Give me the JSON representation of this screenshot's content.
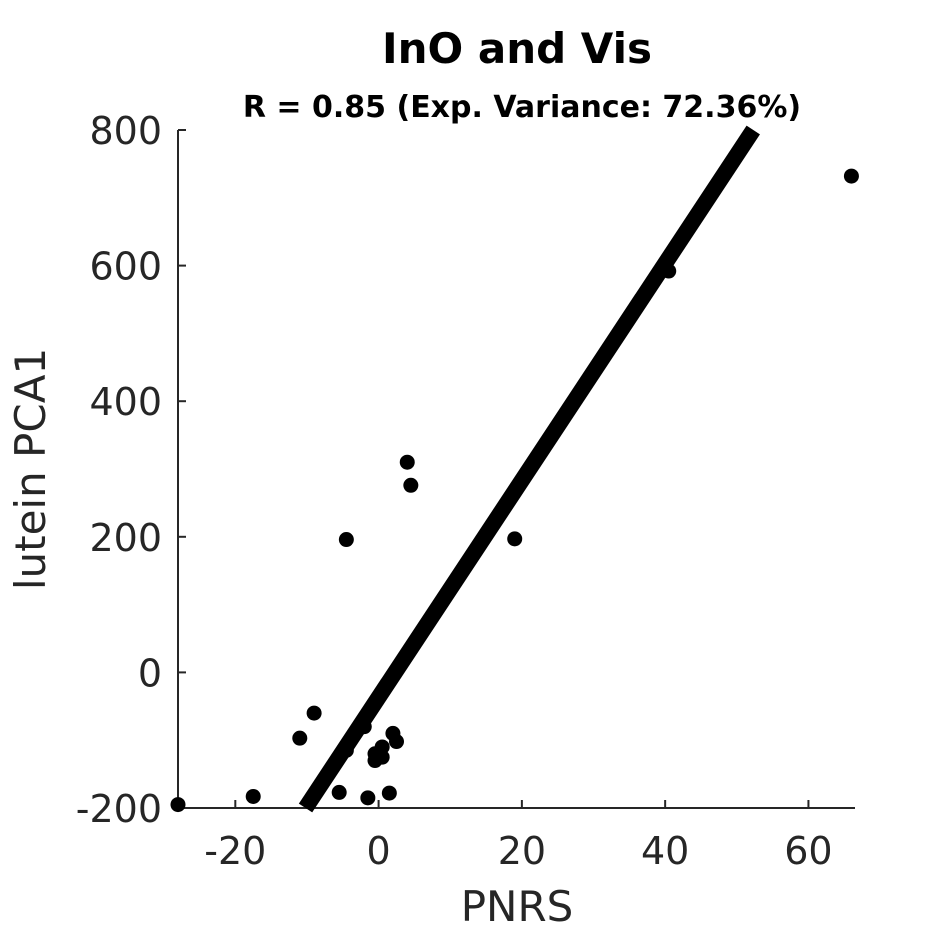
{
  "chart_data": {
    "type": "scatter",
    "title": "InO and Vis",
    "subtitle": "R = 0.85 (Exp. Variance: 72.36%)",
    "xlabel": "PNRS",
    "ylabel": "lutein PCA1",
    "xlim": [
      -28,
      66.5
    ],
    "ylim": [
      -200,
      800
    ],
    "xticks": [
      -20,
      0,
      20,
      40,
      60
    ],
    "yticks": [
      -200,
      0,
      200,
      400,
      600,
      800
    ],
    "xtick_labels": [
      "-20",
      "0",
      "20",
      "40",
      "60"
    ],
    "ytick_labels": [
      "-200",
      "0",
      "200",
      "400",
      "600",
      "800"
    ],
    "grid": false,
    "marker_color": "#000000",
    "points": [
      {
        "x": -28,
        "y": -195
      },
      {
        "x": -17.5,
        "y": -183
      },
      {
        "x": -11,
        "y": -97
      },
      {
        "x": -9,
        "y": -60
      },
      {
        "x": -5.5,
        "y": -177
      },
      {
        "x": -4.5,
        "y": -115
      },
      {
        "x": -4.5,
        "y": 196
      },
      {
        "x": -2,
        "y": -80
      },
      {
        "x": -1.5,
        "y": -185
      },
      {
        "x": -0.5,
        "y": -130
      },
      {
        "x": -0.5,
        "y": -120
      },
      {
        "x": 0.5,
        "y": -110
      },
      {
        "x": 0.5,
        "y": -125
      },
      {
        "x": 1.5,
        "y": -178
      },
      {
        "x": 2,
        "y": -90
      },
      {
        "x": 2.5,
        "y": -102
      },
      {
        "x": 4,
        "y": 310
      },
      {
        "x": 4.5,
        "y": 276
      },
      {
        "x": 19,
        "y": 197
      },
      {
        "x": 40.5,
        "y": 592
      },
      {
        "x": 66,
        "y": 732
      }
    ],
    "fit_line": {
      "x": [
        -10.2,
        52.3
      ],
      "y": [
        -200,
        800
      ],
      "color": "#000000"
    }
  }
}
